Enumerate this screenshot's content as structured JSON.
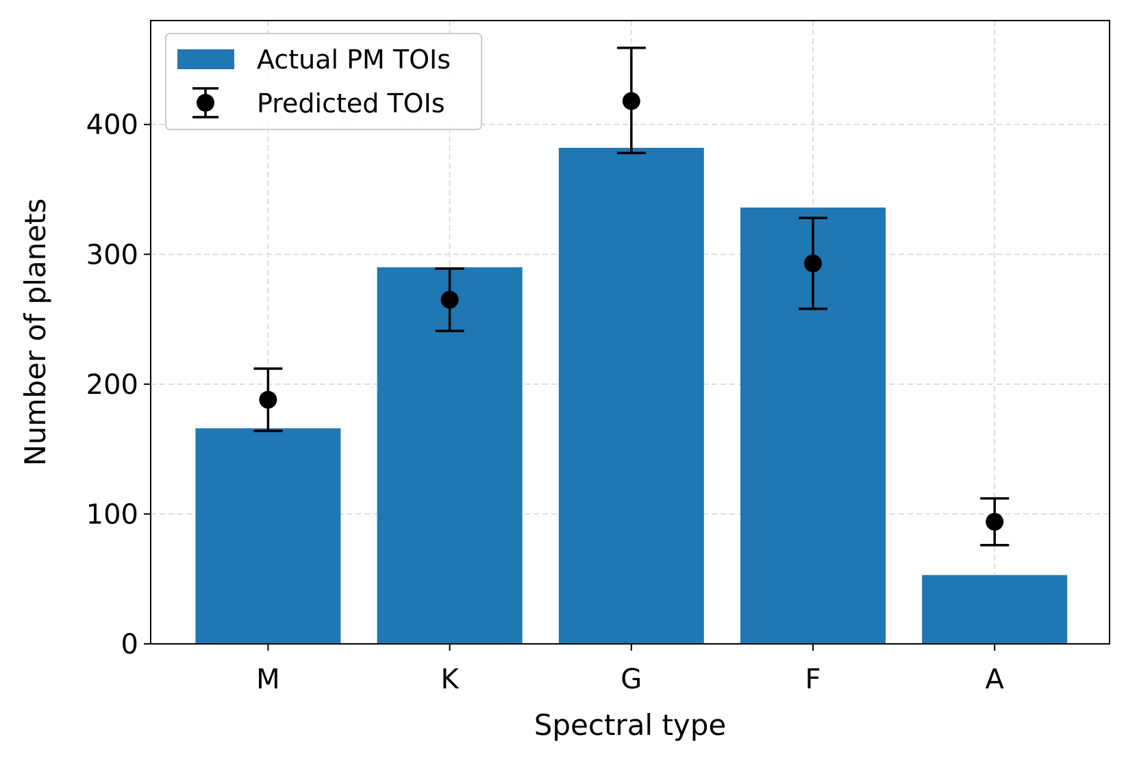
{
  "chart_data": {
    "type": "bar",
    "title": "",
    "xlabel": "Spectral type",
    "ylabel": "Number of planets",
    "categories": [
      "M",
      "K",
      "G",
      "F",
      "A"
    ],
    "ylim": [
      0,
      480
    ],
    "yticks": [
      0,
      100,
      200,
      300,
      400
    ],
    "grid": true,
    "legend_position": "top-left",
    "series": [
      {
        "name": "Actual PM TOIs",
        "kind": "bar",
        "color": "#1f77b4",
        "values": [
          166,
          290,
          382,
          336,
          53
        ]
      },
      {
        "name": "Predicted TOIs",
        "kind": "errorbar",
        "color": "#000000",
        "values": [
          188,
          265,
          418,
          293,
          94
        ],
        "err_low": [
          24,
          24,
          40,
          35,
          18
        ],
        "err_high": [
          24,
          24,
          41,
          35,
          18
        ]
      }
    ]
  }
}
